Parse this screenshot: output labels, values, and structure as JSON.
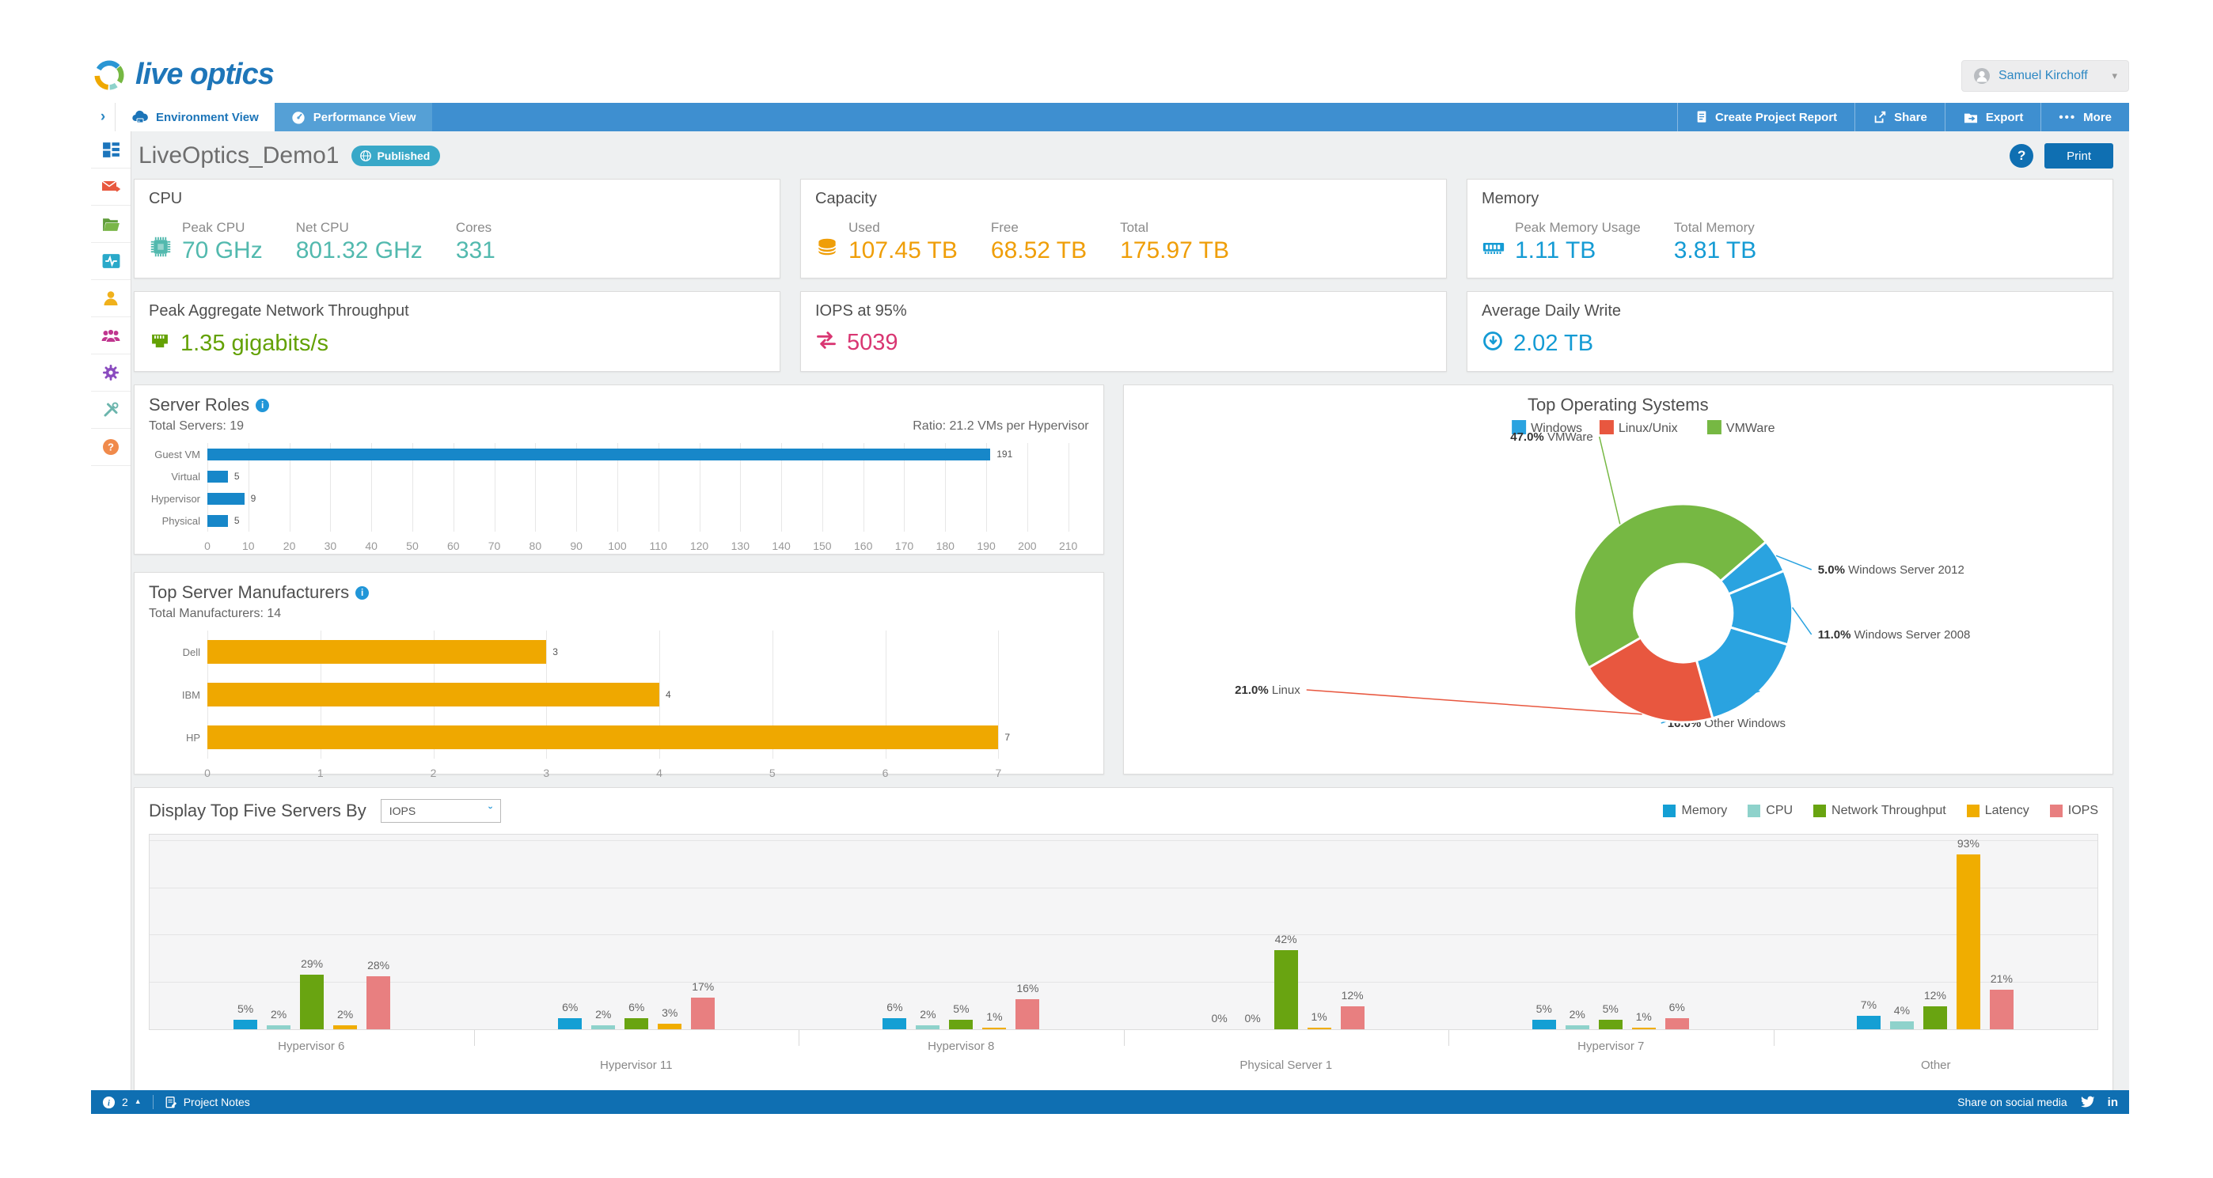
{
  "header": {
    "logo_text": "live optics",
    "user_name": "Samuel Kirchoff"
  },
  "nav": {
    "tabs": [
      {
        "label": "Environment View"
      },
      {
        "label": "Performance View"
      }
    ],
    "actions": [
      {
        "label": "Create Project Report"
      },
      {
        "label": "Share"
      },
      {
        "label": "Export"
      },
      {
        "label": "More"
      }
    ]
  },
  "page": {
    "title": "LiveOptics_Demo1",
    "badge_label": "Published",
    "help_label": "?",
    "print_label": "Print"
  },
  "kpi_cards": {
    "cpu": {
      "title": "CPU",
      "color": "#52b9ae",
      "metrics": [
        {
          "label": "Peak CPU",
          "value": "70 GHz"
        },
        {
          "label": "Net CPU",
          "value": "801.32 GHz"
        },
        {
          "label": "Cores",
          "value": "331"
        }
      ]
    },
    "capacity": {
      "title": "Capacity",
      "color": "#ef9e08",
      "metrics": [
        {
          "label": "Used",
          "value": "107.45 TB"
        },
        {
          "label": "Free",
          "value": "68.52 TB"
        },
        {
          "label": "Total",
          "value": "175.97 TB"
        }
      ]
    },
    "memory": {
      "title": "Memory",
      "color": "#149bd4",
      "metrics": [
        {
          "label": "Peak Memory Usage",
          "value": "1.11 TB"
        },
        {
          "label": "Total Memory",
          "value": "3.81 TB"
        }
      ]
    },
    "network": {
      "title": "Peak Aggregate Network Throughput",
      "color": "#63a103",
      "value": "1.35 gigabits/s"
    },
    "iops": {
      "title": "IOPS at 95%",
      "color": "#d93672",
      "value": "5039"
    },
    "daily_write": {
      "title": "Average Daily Write",
      "color": "#149bd4",
      "value": "2.02 TB"
    }
  },
  "chart_data": [
    {
      "type": "bar",
      "orientation": "horizontal",
      "title": "Server Roles",
      "subtitle_left": "Total Servers: 19",
      "subtitle_right": "Ratio: 21.2 VMs per Hypervisor",
      "categories": [
        "Guest VM",
        "Virtual",
        "Hypervisor",
        "Physical"
      ],
      "values": [
        191,
        5,
        9,
        5
      ],
      "bar_color": "#1787c9",
      "xlim": [
        0,
        215
      ],
      "xtick_step": 10,
      "xtick_max": 210,
      "grid": true
    },
    {
      "type": "bar",
      "orientation": "horizontal",
      "title": "Top Server Manufacturers",
      "subtitle_left": "Total Manufacturers: 14",
      "categories": [
        "Dell",
        "IBM",
        "HP"
      ],
      "values": [
        3,
        4,
        7
      ],
      "bar_color": "#efa800",
      "xlim": [
        0,
        7.8
      ],
      "xtick_step": 1,
      "xtick_max": 7,
      "grid": true
    },
    {
      "type": "donut",
      "title": "Top Operating Systems",
      "legend_position": "top",
      "legend": [
        {
          "label": "Windows",
          "color": "#2aa3e0"
        },
        {
          "label": "Linux/Unix",
          "color": "#e8573f"
        },
        {
          "label": "VMWare",
          "color": "#76b843"
        }
      ],
      "start_angle_deg": 49.2,
      "slices": [
        {
          "label": "Windows Server 2012",
          "pct": 5.0,
          "color": "#2aa3e0"
        },
        {
          "label": "Windows Server 2008",
          "pct": 11.0,
          "color": "#2aa3e0"
        },
        {
          "label": "Other Windows",
          "pct": 16.0,
          "color": "#2aa3e0"
        },
        {
          "label": "Linux",
          "pct": 21.0,
          "color": "#e8573f"
        },
        {
          "label": "VMWare",
          "pct": 47.0,
          "color": "#76b843"
        }
      ]
    },
    {
      "type": "bar",
      "grouped": true,
      "control_label": "Display Top Five Servers By",
      "control_value": "IOPS",
      "value_suffix": "%",
      "ylim": [
        0,
        100
      ],
      "grid": true,
      "legend_position": "top-right",
      "categories": [
        "Hypervisor 6",
        "Hypervisor 11",
        "Hypervisor 8",
        "Physical Server 1",
        "Hypervisor 7",
        "Other"
      ],
      "series": [
        {
          "name": "Memory",
          "color": "#149fd4",
          "values": [
            5,
            6,
            6,
            0,
            5,
            7
          ]
        },
        {
          "name": "CPU",
          "color": "#8ed2cb",
          "values": [
            2,
            2,
            2,
            0,
            2,
            4
          ]
        },
        {
          "name": "Network Throughput",
          "color": "#69a411",
          "values": [
            29,
            6,
            5,
            42,
            5,
            12
          ]
        },
        {
          "name": "Latency",
          "color": "#f0ad00",
          "values": [
            2,
            3,
            1,
            1,
            1,
            93
          ]
        },
        {
          "name": "IOPS",
          "color": "#e87f80",
          "values": [
            28,
            17,
            16,
            12,
            6,
            21
          ]
        }
      ]
    }
  ],
  "footer": {
    "info_count": "2",
    "notes_label": "Project Notes",
    "share_label": "Share on social media"
  }
}
